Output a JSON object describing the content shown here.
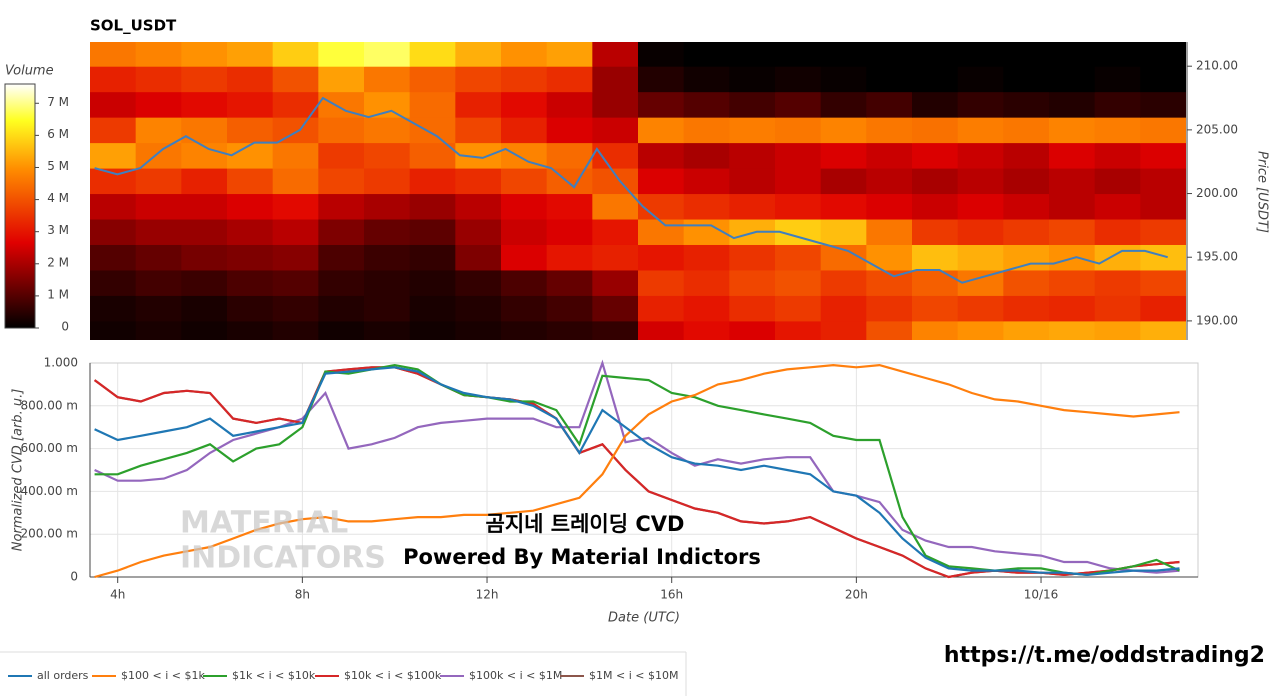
{
  "chart_data": [
    {
      "type": "heatmap",
      "title": "SOL_USDT",
      "xlim": [
        3.4,
        27.4
      ],
      "xbins": [
        3.4,
        4.4,
        5.4,
        6.4,
        7.4,
        8.4,
        9.4,
        10.4,
        11.4,
        12.4,
        13.4,
        14.4,
        15.4,
        16.4,
        17.4,
        18.4,
        19.4,
        20.4,
        21.4,
        22.4,
        23.4,
        24.4,
        25.4,
        26.4,
        27.4
      ],
      "ybins": [
        188,
        190,
        192,
        194,
        196,
        198,
        200,
        202,
        204,
        206,
        208,
        210,
        212
      ],
      "z": [
        [
          0.2,
          0.3,
          0.2,
          0.3,
          0.4,
          0.2,
          0.3,
          0.2,
          0.3,
          0.4,
          0.5,
          0.6,
          2.5,
          2.8,
          2.6,
          3,
          3.2,
          4,
          4.8,
          5,
          5.2,
          5.3,
          5.2,
          5.4
        ],
        [
          0.3,
          0.4,
          0.3,
          0.5,
          0.6,
          0.4,
          0.5,
          0.3,
          0.4,
          0.6,
          0.8,
          1.2,
          3.2,
          3,
          3.4,
          3.6,
          3.2,
          3.5,
          3.8,
          3.6,
          3.4,
          3.3,
          3.5,
          3.2
        ],
        [
          0.6,
          0.8,
          0.7,
          0.9,
          1,
          0.6,
          0.5,
          0.4,
          0.6,
          0.9,
          1.2,
          1.8,
          3.6,
          3.4,
          3.8,
          4,
          3.6,
          3.9,
          4.2,
          4.6,
          4,
          3.8,
          3.6,
          3.8
        ],
        [
          1,
          1.2,
          1.4,
          1.5,
          1.6,
          0.9,
          0.7,
          0.6,
          1.5,
          2.6,
          3,
          3.2,
          3,
          3.2,
          3.5,
          3.8,
          4.4,
          5,
          5.6,
          5.4,
          5.2,
          5,
          5.4,
          5.6
        ],
        [
          1.6,
          1.8,
          1.8,
          2,
          2.2,
          1.5,
          1.2,
          1.1,
          1.8,
          2.4,
          2.6,
          3,
          4.6,
          5,
          5.4,
          5.8,
          5.6,
          4.6,
          3.6,
          3.4,
          3.6,
          3.8,
          3.4,
          3.6
        ],
        [
          2.2,
          2.4,
          2.4,
          2.6,
          2.8,
          2.2,
          2,
          1.8,
          2.2,
          2.6,
          2.8,
          4.6,
          3.6,
          3.4,
          3.2,
          3,
          2.8,
          2.6,
          2.4,
          2.6,
          2.4,
          2.2,
          2.4,
          2.2
        ],
        [
          3.4,
          3.6,
          3.2,
          3.8,
          4.4,
          3.8,
          3.6,
          3.2,
          3.4,
          3.8,
          4.2,
          4,
          2.6,
          2.4,
          2.2,
          2.4,
          2,
          2.2,
          2,
          2.2,
          2,
          2.2,
          2,
          2.2
        ],
        [
          5.2,
          4.6,
          4.8,
          5,
          4.6,
          3.6,
          3.8,
          4.2,
          5,
          4.8,
          4.4,
          3.4,
          2.2,
          2,
          2.2,
          2.4,
          2.6,
          2.4,
          2.6,
          2.4,
          2.2,
          2.6,
          2.4,
          2.6
        ],
        [
          3.6,
          4.8,
          4.6,
          4.2,
          4,
          4.4,
          4.6,
          4.4,
          3.8,
          3.2,
          2.6,
          2.4,
          4.8,
          4.6,
          4.7,
          4.6,
          4.8,
          4.6,
          4.5,
          4.7,
          4.6,
          4.8,
          4.7,
          4.6
        ],
        [
          2.4,
          2.6,
          2.8,
          3,
          3.4,
          4.6,
          5,
          4.4,
          3.2,
          2.8,
          2.4,
          1.8,
          1.2,
          1,
          0.8,
          1,
          0.6,
          0.8,
          0.4,
          0.6,
          0.5,
          0.4,
          0.6,
          0.5
        ],
        [
          3.2,
          3.4,
          3.6,
          3.4,
          4,
          5.2,
          4.6,
          4.2,
          3.8,
          3.6,
          3.4,
          1.8,
          0.4,
          0.2,
          0.1,
          0.2,
          0.1,
          0,
          0,
          0.1,
          0,
          0,
          0.1,
          0
        ],
        [
          4.6,
          4.8,
          5,
          5.2,
          5.8,
          6.6,
          6.8,
          6,
          5.4,
          5,
          5.2,
          2.2,
          0.1,
          0,
          0,
          0,
          0,
          0,
          0,
          0,
          0,
          0,
          0,
          0
        ]
      ],
      "colorscale": [
        [
          0,
          "#000000"
        ],
        [
          0.35,
          "#e00000"
        ],
        [
          0.65,
          "#ff8c00"
        ],
        [
          0.85,
          "#ffff20"
        ],
        [
          1,
          "#ffffff"
        ]
      ],
      "colorbar": {
        "title": "Volume",
        "lim": [
          0,
          7.6
        ],
        "ticks": [
          0,
          {
            "value": 1,
            "label": "1 M"
          },
          {
            "value": 2,
            "label": "2 M"
          },
          {
            "value": 3,
            "label": "3 M"
          },
          {
            "value": 4,
            "label": "4 M"
          },
          {
            "value": 5,
            "label": "5 M"
          },
          {
            "value": 6,
            "label": "6 M"
          },
          {
            "value": 7,
            "label": "7 M"
          }
        ]
      },
      "y2label": "Price [USDT]",
      "y2lim": [
        188.5,
        211.9
      ],
      "y2ticks": [
        {
          "value": 190,
          "label": "190.00"
        },
        {
          "value": 195,
          "label": "195.00"
        },
        {
          "value": 200,
          "label": "200.00"
        },
        {
          "value": 205,
          "label": "205.00"
        },
        {
          "value": 210,
          "label": "210.00"
        }
      ],
      "x": [
        3.5,
        4,
        4.5,
        5,
        5.5,
        6,
        6.5,
        7,
        7.5,
        8,
        8.5,
        9,
        9.5,
        10,
        10.5,
        11,
        11.5,
        12,
        12.5,
        13,
        13.5,
        14,
        14.5,
        15,
        15.5,
        16,
        16.5,
        17,
        17.5,
        18,
        18.5,
        19,
        19.5,
        20,
        20.5,
        21,
        21.5,
        22,
        22.5,
        23,
        23.5,
        24,
        24.5,
        25,
        25.5,
        26,
        26.5,
        27
      ],
      "price": {
        "color": "#3f7fbf",
        "axis": "y2",
        "values": [
          202,
          201.5,
          202,
          203.5,
          204.5,
          203.5,
          203,
          204,
          204,
          205,
          207.5,
          206.5,
          206,
          206.5,
          205.5,
          204.5,
          203,
          202.8,
          203.5,
          202.5,
          202,
          200.5,
          203.5,
          201,
          199,
          197.5,
          197.5,
          197.5,
          196.5,
          197,
          197,
          196.5,
          196,
          195.5,
          194.5,
          193.5,
          194,
          194,
          193,
          193.5,
          194,
          194.5,
          194.5,
          195,
          194.5,
          195.5,
          195.5,
          195
        ]
      }
    },
    {
      "type": "line",
      "xlabel": "Date (UTC)",
      "ylabel": "Normalized CVD [arb. u.]",
      "xlim": [
        3.4,
        27.4
      ],
      "xticks": [
        {
          "value": 4,
          "label": "4h"
        },
        {
          "value": 8,
          "label": "8h"
        },
        {
          "value": 12,
          "label": "12h"
        },
        {
          "value": 16,
          "label": "16h"
        },
        {
          "value": 20,
          "label": "20h"
        },
        {
          "value": 24,
          "label": "10/16"
        }
      ],
      "ylim": [
        0,
        1
      ],
      "yticks": [
        0,
        {
          "value": 0.2,
          "label": "200.00 m"
        },
        {
          "value": 0.4,
          "label": "400.00 m"
        },
        {
          "value": 0.6,
          "label": "600.00 m"
        },
        {
          "value": 0.8,
          "label": "800.00 m"
        },
        {
          "value": 1,
          "label": "1.000"
        }
      ],
      "grid": true,
      "x": [
        3.5,
        4,
        4.5,
        5,
        5.5,
        6,
        6.5,
        7,
        7.5,
        8,
        8.5,
        9,
        9.5,
        10,
        10.5,
        11,
        11.5,
        12,
        12.5,
        13,
        13.5,
        14,
        14.5,
        15,
        15.5,
        16,
        16.5,
        17,
        17.5,
        18,
        18.5,
        19,
        19.5,
        20,
        20.5,
        21,
        21.5,
        22,
        22.5,
        23,
        23.5,
        24,
        24.5,
        25,
        25.5,
        26,
        26.5,
        27
      ],
      "series": [
        {
          "name": "all orders",
          "color": "#1f77b4",
          "values": [
            0.69,
            0.64,
            0.66,
            0.68,
            0.7,
            0.74,
            0.66,
            0.68,
            0.7,
            0.72,
            0.95,
            0.96,
            0.97,
            0.98,
            0.96,
            0.9,
            0.86,
            0.84,
            0.83,
            0.8,
            0.74,
            0.58,
            0.78,
            0.7,
            0.62,
            0.56,
            0.53,
            0.52,
            0.5,
            0.52,
            0.5,
            0.48,
            0.4,
            0.38,
            0.3,
            0.18,
            0.09,
            0.04,
            0.03,
            0.03,
            0.03,
            0.02,
            0.02,
            0.01,
            0.02,
            0.03,
            0.03,
            0.04
          ]
        },
        {
          "name": "$100 < i < $1k",
          "color": "#ff7f0e",
          "values": [
            0,
            0.03,
            0.07,
            0.1,
            0.12,
            0.14,
            0.18,
            0.22,
            0.25,
            0.27,
            0.28,
            0.26,
            0.26,
            0.27,
            0.28,
            0.28,
            0.29,
            0.29,
            0.3,
            0.31,
            0.34,
            0.37,
            0.48,
            0.66,
            0.76,
            0.82,
            0.85,
            0.9,
            0.92,
            0.95,
            0.97,
            0.98,
            0.99,
            0.98,
            0.99,
            0.96,
            0.93,
            0.9,
            0.86,
            0.83,
            0.82,
            0.8,
            0.78,
            0.77,
            0.76,
            0.75,
            0.76,
            0.77
          ]
        },
        {
          "name": "$1k < i < $10k",
          "color": "#2ca02c",
          "values": [
            0.48,
            0.48,
            0.52,
            0.55,
            0.58,
            0.62,
            0.54,
            0.6,
            0.62,
            0.7,
            0.96,
            0.95,
            0.97,
            0.99,
            0.97,
            0.9,
            0.85,
            0.84,
            0.82,
            0.82,
            0.78,
            0.62,
            0.94,
            0.93,
            0.92,
            0.86,
            0.84,
            0.8,
            0.78,
            0.76,
            0.74,
            0.72,
            0.66,
            0.64,
            0.64,
            0.28,
            0.1,
            0.05,
            0.04,
            0.03,
            0.04,
            0.04,
            0.02,
            0.01,
            0.03,
            0.05,
            0.08,
            0.03
          ]
        },
        {
          "name": "$10k < i < $100k",
          "color": "#d62728",
          "values": [
            0.92,
            0.84,
            0.82,
            0.86,
            0.87,
            0.86,
            0.74,
            0.72,
            0.74,
            0.72,
            0.96,
            0.97,
            0.98,
            0.98,
            0.95,
            0.9,
            0.85,
            0.84,
            0.83,
            0.81,
            0.74,
            0.58,
            0.62,
            0.5,
            0.4,
            0.36,
            0.32,
            0.3,
            0.26,
            0.25,
            0.26,
            0.28,
            0.23,
            0.18,
            0.14,
            0.1,
            0.04,
            0,
            0.02,
            0.03,
            0.02,
            0.02,
            0.01,
            0.02,
            0.03,
            0.05,
            0.06,
            0.07
          ]
        },
        {
          "name": "$100k < i < $1M",
          "color": "#9467bd",
          "values": [
            0.5,
            0.45,
            0.45,
            0.46,
            0.5,
            0.58,
            0.64,
            0.67,
            0.7,
            0.74,
            0.86,
            0.6,
            0.62,
            0.65,
            0.7,
            0.72,
            0.73,
            0.74,
            0.74,
            0.74,
            0.7,
            0.7,
            1,
            0.63,
            0.65,
            0.58,
            0.52,
            0.55,
            0.53,
            0.55,
            0.56,
            0.56,
            0.4,
            0.38,
            0.35,
            0.22,
            0.17,
            0.14,
            0.14,
            0.12,
            0.11,
            0.1,
            0.07,
            0.07,
            0.04,
            0.03,
            0.02,
            0.03
          ]
        },
        {
          "name": "$1M < i < $10M",
          "color": "#8c564b",
          "values": [
            0.92,
            0.84,
            0.82,
            0.86,
            0.87,
            0.86,
            0.74,
            0.72,
            0.74,
            0.72,
            0.96,
            0.97,
            0.98,
            0.98,
            0.95,
            0.9,
            0.85,
            0.84,
            0.83,
            0.81,
            0.74,
            0.58,
            0.62,
            0.5,
            0.4,
            0.36,
            0.32,
            0.3,
            0.26,
            0.25,
            0.26,
            0.28,
            0.23,
            0.18,
            0.14,
            0.1,
            0.04,
            0,
            0.02,
            0.03,
            0.02,
            0.02,
            0.01,
            0.02,
            0.03,
            0.05,
            0.06,
            0.07
          ]
        }
      ],
      "annotations": [
        "곰지네 트레이딩 CVD",
        "Powered By Material Indictors"
      ],
      "watermark": [
        "MATERIAL",
        "INDICATORS"
      ]
    }
  ],
  "link": "https://t.me/oddstrading2"
}
